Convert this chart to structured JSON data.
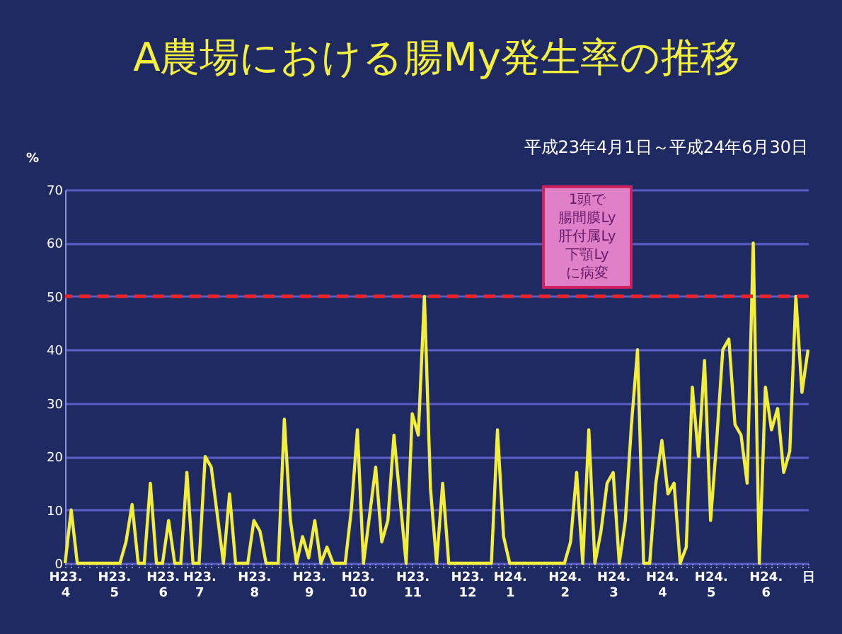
{
  "chart_data": {
    "type": "line",
    "title": "A農場における腸My発生率の推移",
    "subtitle": "平成23年4月1日～平成24年6月30日",
    "ylabel": "%",
    "categories": [
      "H23.\n4",
      null,
      null,
      null,
      null,
      null,
      null,
      null,
      "H23.\n5",
      null,
      null,
      null,
      null,
      null,
      null,
      null,
      "H23.\n6",
      null,
      null,
      null,
      null,
      null,
      "H23.\n7",
      null,
      null,
      null,
      null,
      null,
      null,
      null,
      null,
      "H23.\n8",
      null,
      null,
      null,
      null,
      null,
      null,
      null,
      null,
      "H23.\n9",
      null,
      null,
      null,
      null,
      null,
      null,
      null,
      "H23.\n10",
      null,
      null,
      null,
      null,
      null,
      null,
      null,
      null,
      "H23.\n11",
      null,
      null,
      null,
      null,
      null,
      null,
      null,
      null,
      "H23.\n12",
      null,
      null,
      null,
      null,
      null,
      null,
      "H24.\n1",
      null,
      null,
      null,
      null,
      null,
      null,
      null,
      null,
      "H24.\n2",
      null,
      null,
      null,
      null,
      null,
      null,
      null,
      "H24.\n3",
      null,
      null,
      null,
      null,
      null,
      null,
      null,
      "H24.\n4",
      null,
      null,
      null,
      null,
      null,
      null,
      null,
      "H24.\n5",
      null,
      null,
      null,
      null,
      null,
      null,
      null,
      null,
      "H24.\n6",
      null,
      null,
      null,
      null,
      null,
      null,
      "日"
    ],
    "series": [
      {
        "color": "#f2ee3a",
        "values": [
          0,
          10,
          0,
          0,
          0,
          0,
          0,
          0,
          0,
          0,
          4,
          11,
          0,
          0,
          15,
          0,
          0,
          8,
          0,
          0,
          17,
          0,
          0,
          20,
          18,
          9,
          0,
          13,
          0,
          0,
          0,
          8,
          6,
          0,
          0,
          0,
          27,
          8,
          0,
          5,
          1,
          8,
          0,
          3,
          0,
          0,
          0,
          10,
          25,
          0,
          9,
          18,
          4,
          8,
          24,
          12,
          0,
          28,
          24,
          50,
          14,
          0,
          15,
          0,
          0,
          0,
          0,
          0,
          0,
          0,
          0,
          25,
          5,
          0,
          0,
          0,
          0,
          0,
          0,
          0,
          0,
          0,
          0,
          4,
          17,
          0,
          25,
          0,
          6,
          15,
          17,
          0,
          8,
          26,
          40,
          0,
          0,
          15,
          23,
          13,
          15,
          0,
          3,
          33,
          20,
          38,
          8,
          23,
          40,
          42,
          26,
          24,
          15,
          60,
          0,
          33,
          25,
          29,
          17,
          21,
          50,
          32,
          40
        ]
      }
    ],
    "ylim": [
      0,
      70
    ],
    "yticks": [
      0,
      10,
      20,
      30,
      40,
      50,
      60,
      70
    ],
    "grid": "y",
    "ref_lines": [
      {
        "axis": "y",
        "value": 50,
        "color": "#e8232a",
        "line_style": "dashed"
      }
    ],
    "annotations": [
      "1頭で",
      "腸間膜Ly",
      "肝付属Ly",
      "下顎Ly",
      "に病変"
    ]
  }
}
